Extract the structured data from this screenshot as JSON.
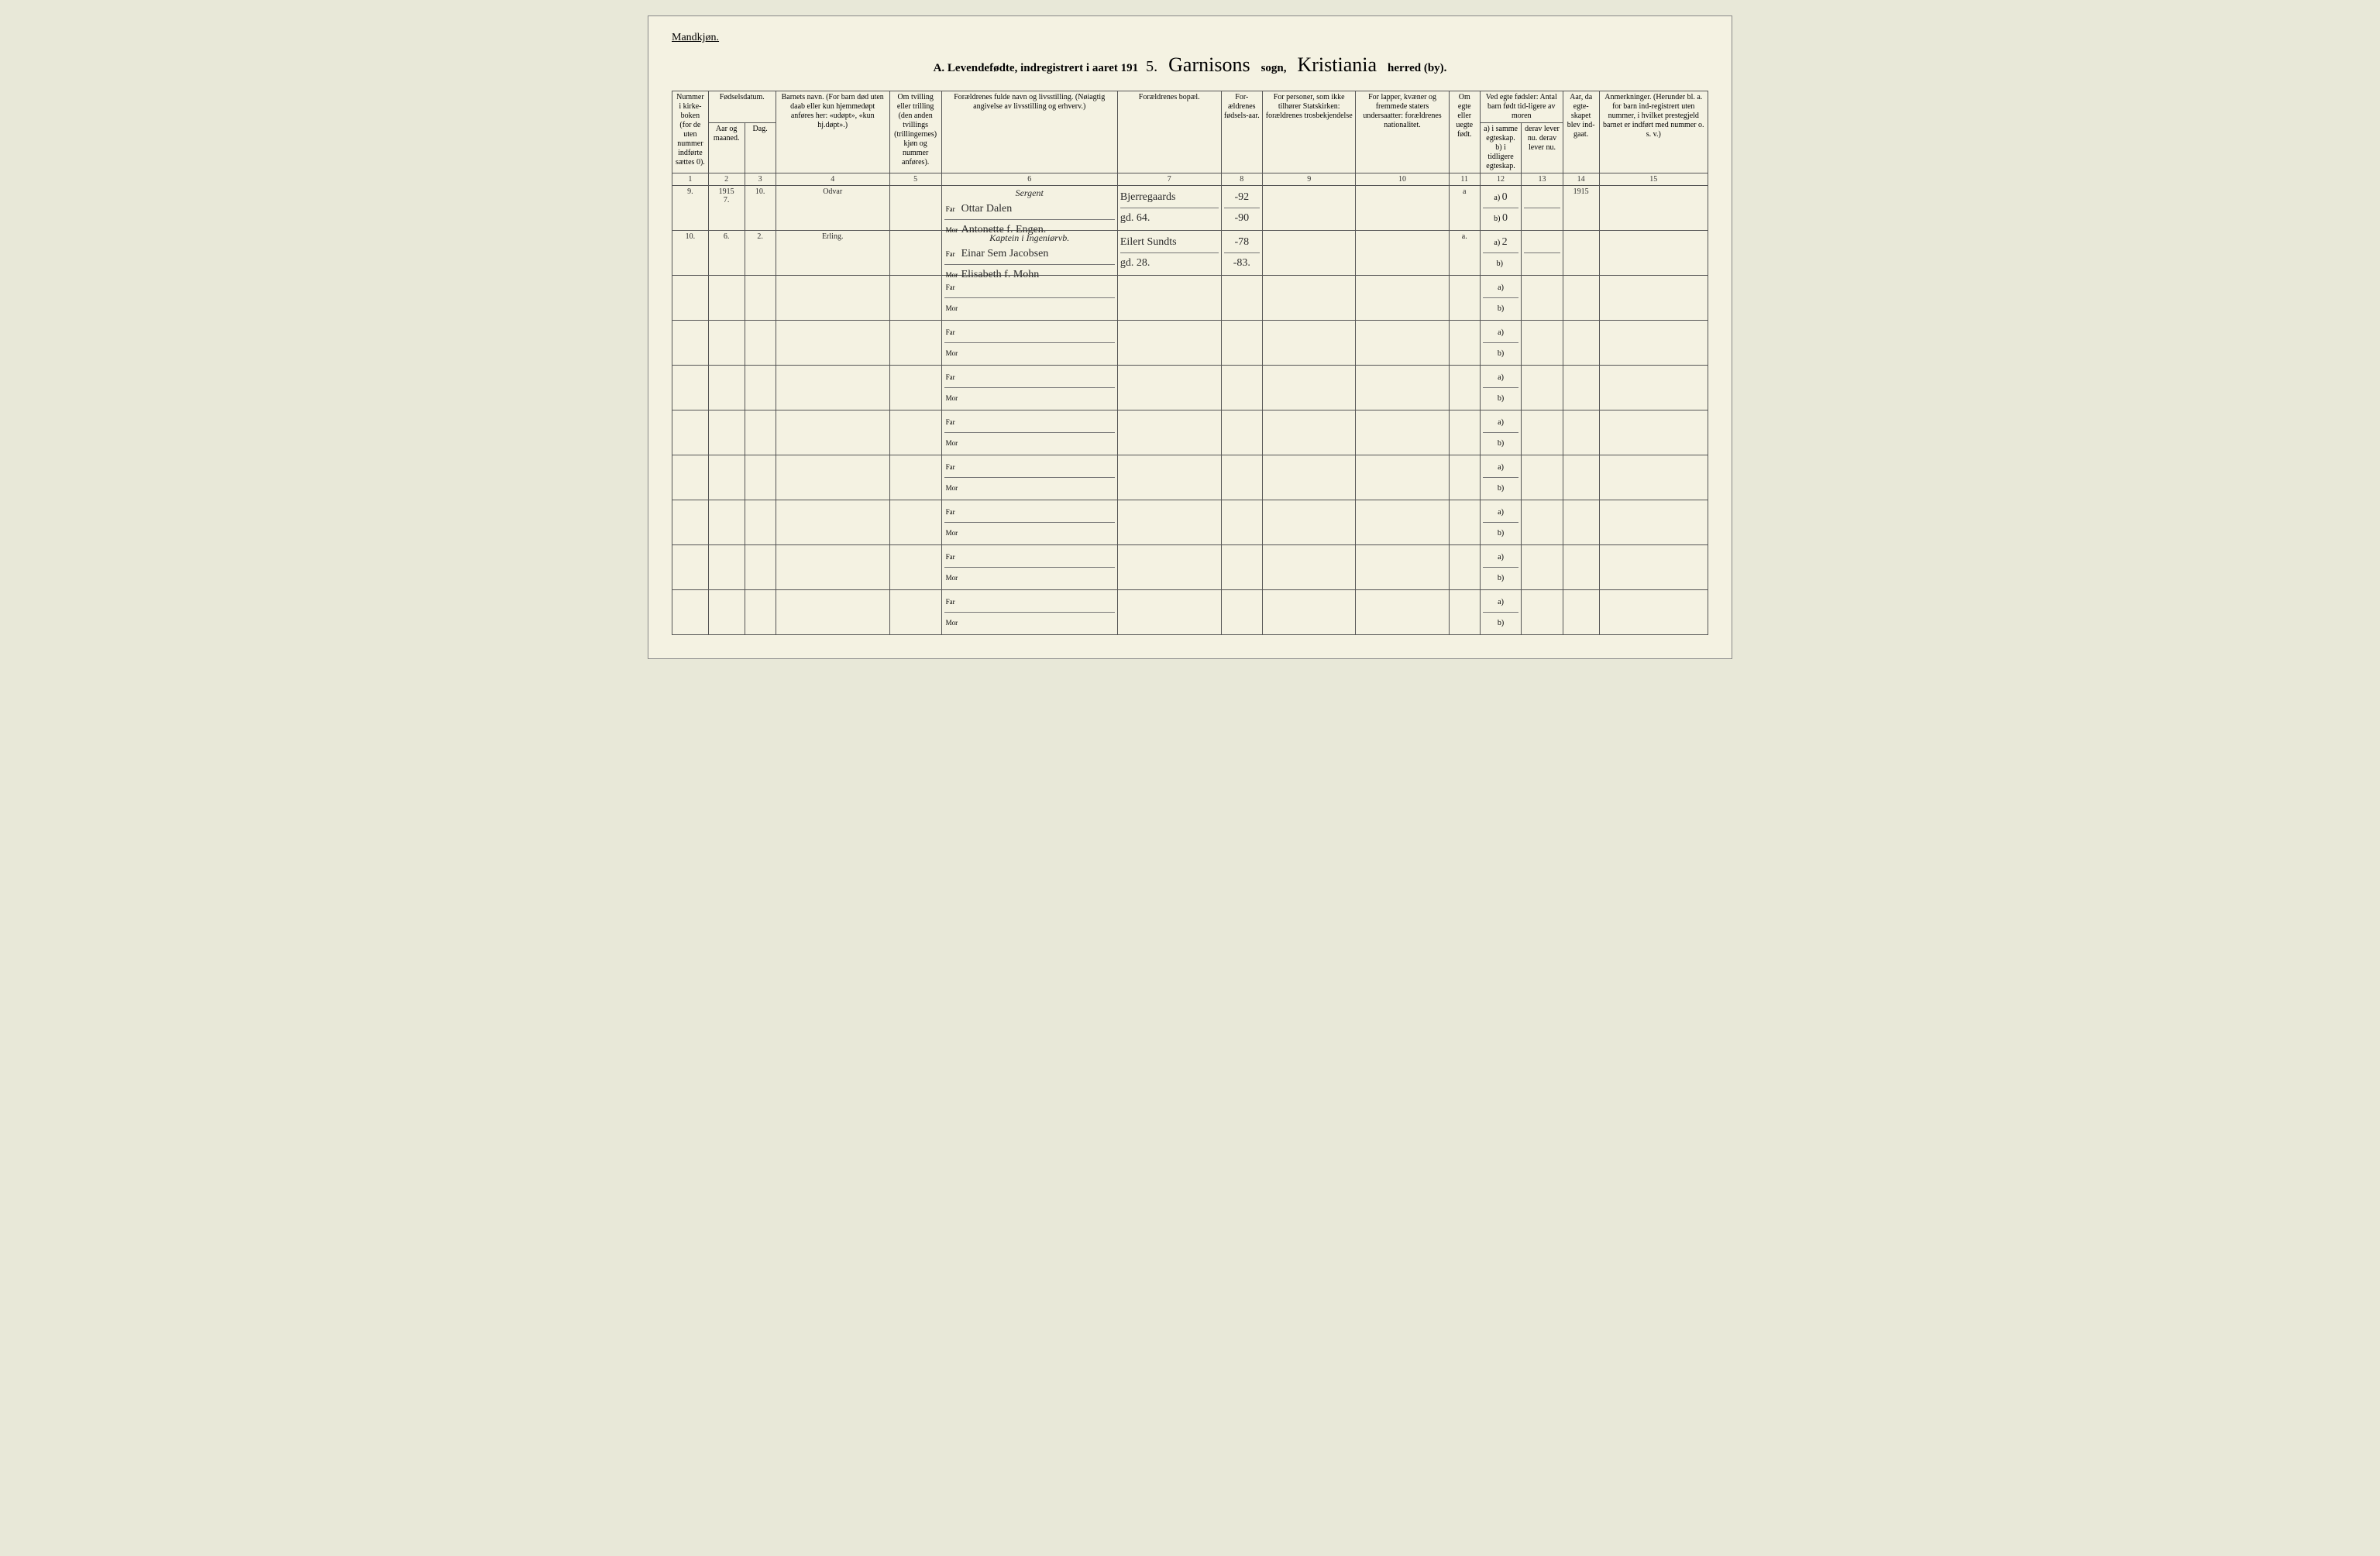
{
  "page": {
    "gender": "Mandkjøn.",
    "title_prefix": "A.  Levendefødte, indregistrert i aaret 191",
    "year_suffix": "5.",
    "sogn_handwritten": "Garnisons",
    "sogn_label": "sogn,",
    "herred_handwritten": "Kristiania",
    "herred_label": "herred (by)."
  },
  "headers": {
    "col1": "Nummer i kirke-boken (for de uten nummer indførte sættes 0).",
    "col2_group": "Fødselsdatum.",
    "col2": "Aar og maaned.",
    "col3": "Dag.",
    "col4": "Barnets navn.\n(For barn død uten daab eller kun hjemmedøpt anføres her: «udøpt», «kun hj.døpt».)",
    "col5": "Om tvilling eller trilling (den anden tvillings (trillingernes) kjøn og nummer anføres).",
    "col6": "Forældrenes fulde navn og livsstilling.\n(Nøiagtig angivelse av livsstilling og erhverv.)",
    "col7": "Forældrenes bopæl.",
    "col8": "For-ældrenes fødsels-aar.",
    "col9": "For personer, som ikke tilhører Statskirken: forældrenes trosbekjendelse",
    "col10": "For lapper, kvæner og fremmede staters undersaatter: forældrenes nationalitet.",
    "col11": "Om egte eller uegte født.",
    "col12_group": "Ved egte fødsler:\nAntal barn født tid-ligere av moren",
    "col12": "a) i samme egteskap.\nb) i tidligere egteskap.",
    "col13": "derav lever nu.\nderav lever nu.",
    "col14": "Aar, da egte-skapet blev ind-gaat.",
    "col15": "Anmerkninger.\n(Herunder bl. a. for barn ind-registrert uten nummer, i hvilket prestegjeld barnet er indført med nummer o. s. v.)"
  },
  "colnums": [
    "1",
    "2",
    "3",
    "4",
    "5",
    "6",
    "7",
    "8",
    "9",
    "10",
    "11",
    "12",
    "13",
    "14",
    "15"
  ],
  "far_label": "Far",
  "mor_label": "Mor",
  "ab_a": "a)",
  "ab_b": "b)",
  "entries": [
    {
      "num": "9.",
      "year_month": "1915\n7.",
      "day": "10.",
      "child_name": "Odvar",
      "twin": "",
      "occupation": "Sergent",
      "father": "Ottar Dalen",
      "mother": "Antonette f. Engen.",
      "residence_far": "Bjerregaards",
      "residence_mor": "gd. 64.",
      "birthyear_far": "-92",
      "birthyear_mor": "-90",
      "legit": "a",
      "prev_a": "0",
      "prev_b": "0",
      "alive_a": "",
      "alive_b": "",
      "marriage_year": "1915",
      "remarks": ""
    },
    {
      "num": "10.",
      "year_month": "6.",
      "day": "2.",
      "child_name": "Erling.",
      "twin": "",
      "occupation": "Kaptein i Ingeniørvb.",
      "father": "Einar Sem Jacobsen",
      "mother": "Elisabeth f. Mohn",
      "residence_far": "Eilert Sundts",
      "residence_mor": "gd. 28.",
      "birthyear_far": "-78",
      "birthyear_mor": "-83.",
      "legit": "a.",
      "prev_a": "2",
      "prev_b": "",
      "alive_a": "",
      "alive_b": "",
      "marriage_year": "",
      "remarks": ""
    }
  ],
  "blank_rows": 8,
  "colors": {
    "page_bg": "#f4f2e2",
    "ink": "#2a2a2a",
    "rule": "#555555"
  }
}
